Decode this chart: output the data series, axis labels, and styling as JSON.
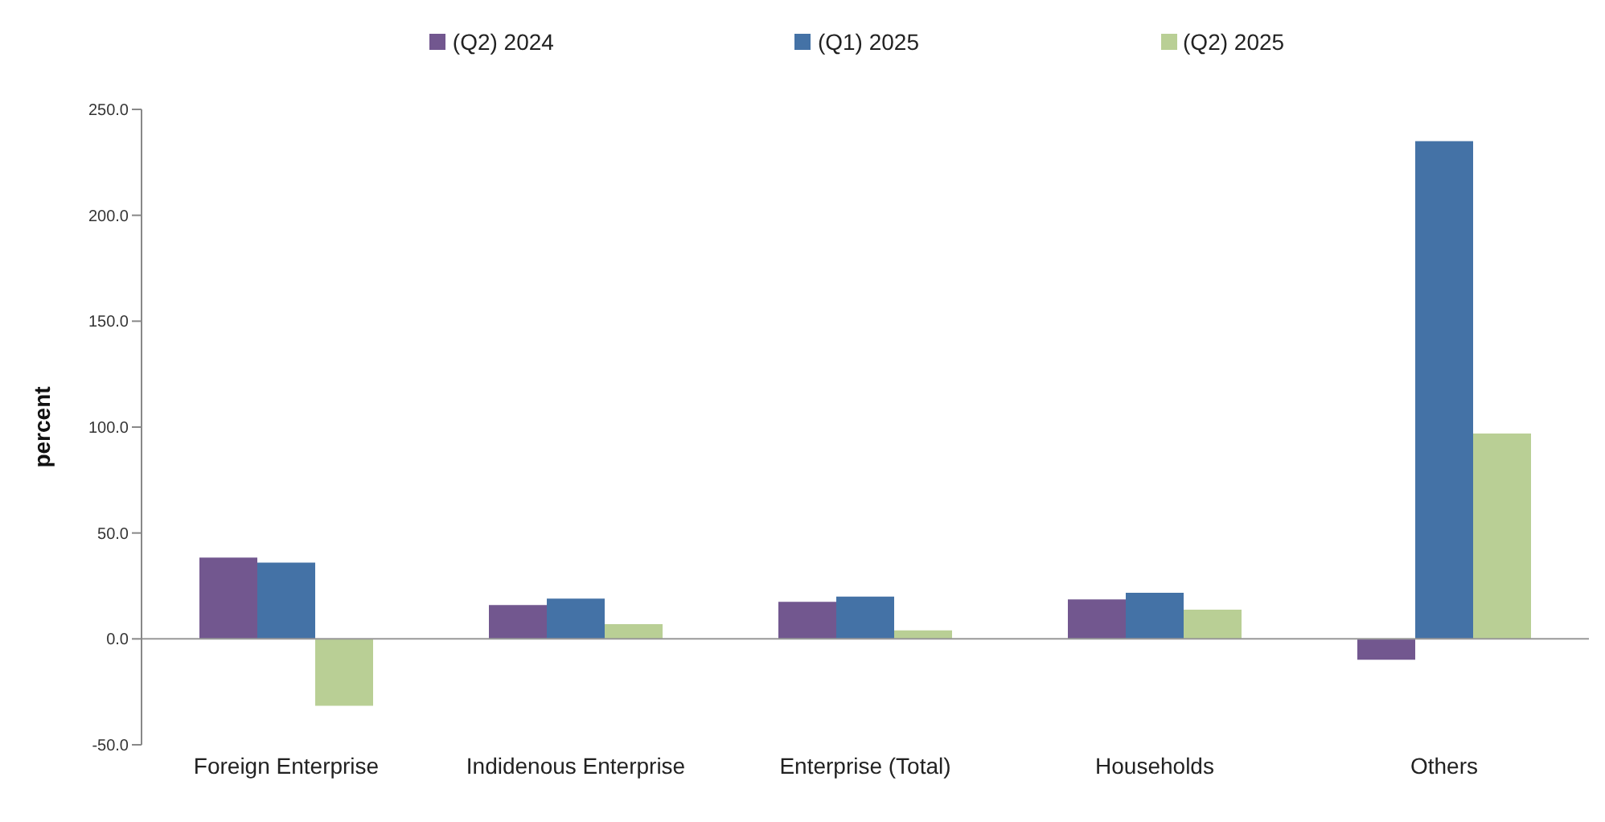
{
  "chart_data": {
    "type": "bar",
    "ylabel": "percent",
    "categories": [
      "Foreign Enterprise",
      "Indidenous Enterprise",
      "Enterprise (Total)",
      "Households",
      "Others"
    ],
    "series": [
      {
        "name": "(Q2) 2024",
        "color": "#72578f",
        "values": [
          38.4,
          16,
          17.5,
          18.6,
          -9.8
        ]
      },
      {
        "name": "(Q1) 2025",
        "color": "#4472a6",
        "values": [
          36,
          19,
          20,
          21.8,
          235
        ]
      },
      {
        "name": "(Q2) 2025",
        "color": "#b9cf95",
        "values": [
          -31.6,
          7,
          4,
          13.8,
          97
        ]
      }
    ],
    "ylim": [
      -50,
      250
    ],
    "yticks": [
      {
        "value": -50,
        "label": "-50.0"
      },
      {
        "value": 0,
        "label": "0.0"
      },
      {
        "value": 50,
        "label": "50.0"
      },
      {
        "value": 100,
        "label": "100.0"
      },
      {
        "value": 150,
        "label": "150.0"
      },
      {
        "value": 200,
        "label": "200.0"
      },
      {
        "value": 250,
        "label": "250.0"
      }
    ],
    "legend": "top"
  }
}
